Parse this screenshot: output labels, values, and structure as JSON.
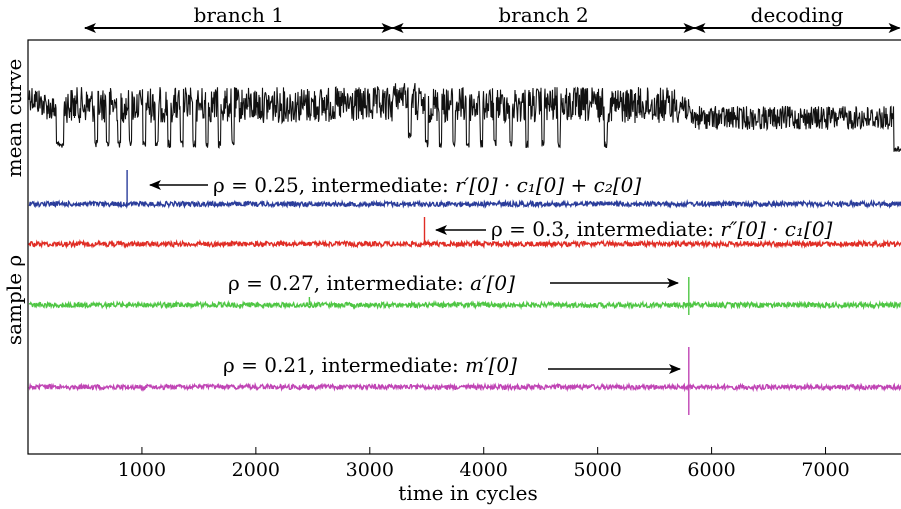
{
  "chart_data": {
    "type": "line",
    "xlabel": "time in cycles",
    "xlim": [
      0,
      7680
    ],
    "xticks": [
      1000,
      2000,
      3000,
      4000,
      5000,
      6000,
      7000
    ],
    "ylabels": {
      "mean": "mean curve",
      "sample": "sample ρ"
    },
    "phases": [
      {
        "label": "branch 1",
        "x": [
          500,
          3200
        ]
      },
      {
        "label": "branch 2",
        "x": [
          3200,
          5850
        ]
      },
      {
        "label": "decoding",
        "x": [
          5850,
          7650
        ]
      }
    ],
    "mean_curve": {
      "color": "#111111",
      "dips": [
        300,
        600,
        700,
        800,
        900,
        1020,
        1130,
        1240,
        1350,
        1460,
        1570,
        1680,
        1800,
        3350,
        3500,
        3620,
        3740,
        3860,
        3980,
        4100,
        4240,
        4380,
        4520,
        4660,
        5070
      ]
    },
    "series": [
      {
        "name": "intermediate: r′[0] · c₁[0] + c₂[0]",
        "color": "#2b3d9b",
        "rho": 0.25,
        "peak_x": 870
      },
      {
        "name": "intermediate: r″[0] · c₁[0]",
        "color": "#e02d25",
        "rho": 0.3,
        "peak_x": 3480
      },
      {
        "name": "intermediate: a′[0]",
        "color": "#4fc644",
        "rho": 0.27,
        "peak_x": 5800
      },
      {
        "name": "intermediate: m′[0]",
        "color": "#c045b5",
        "rho": 0.21,
        "peak_x": 5800
      }
    ],
    "annotations": [
      {
        "rho_text": "ρ = 0.25, intermediate: ",
        "expr": "r′[0] · c₁[0] + c₂[0]"
      },
      {
        "rho_text": "ρ = 0.3, intermediate: ",
        "expr": "r″[0] · c₁[0]"
      },
      {
        "rho_text": "ρ = 0.27, intermediate: ",
        "expr": "a′[0]"
      },
      {
        "rho_text": "ρ = 0.21, intermediate: ",
        "expr": "m′[0]"
      }
    ]
  }
}
